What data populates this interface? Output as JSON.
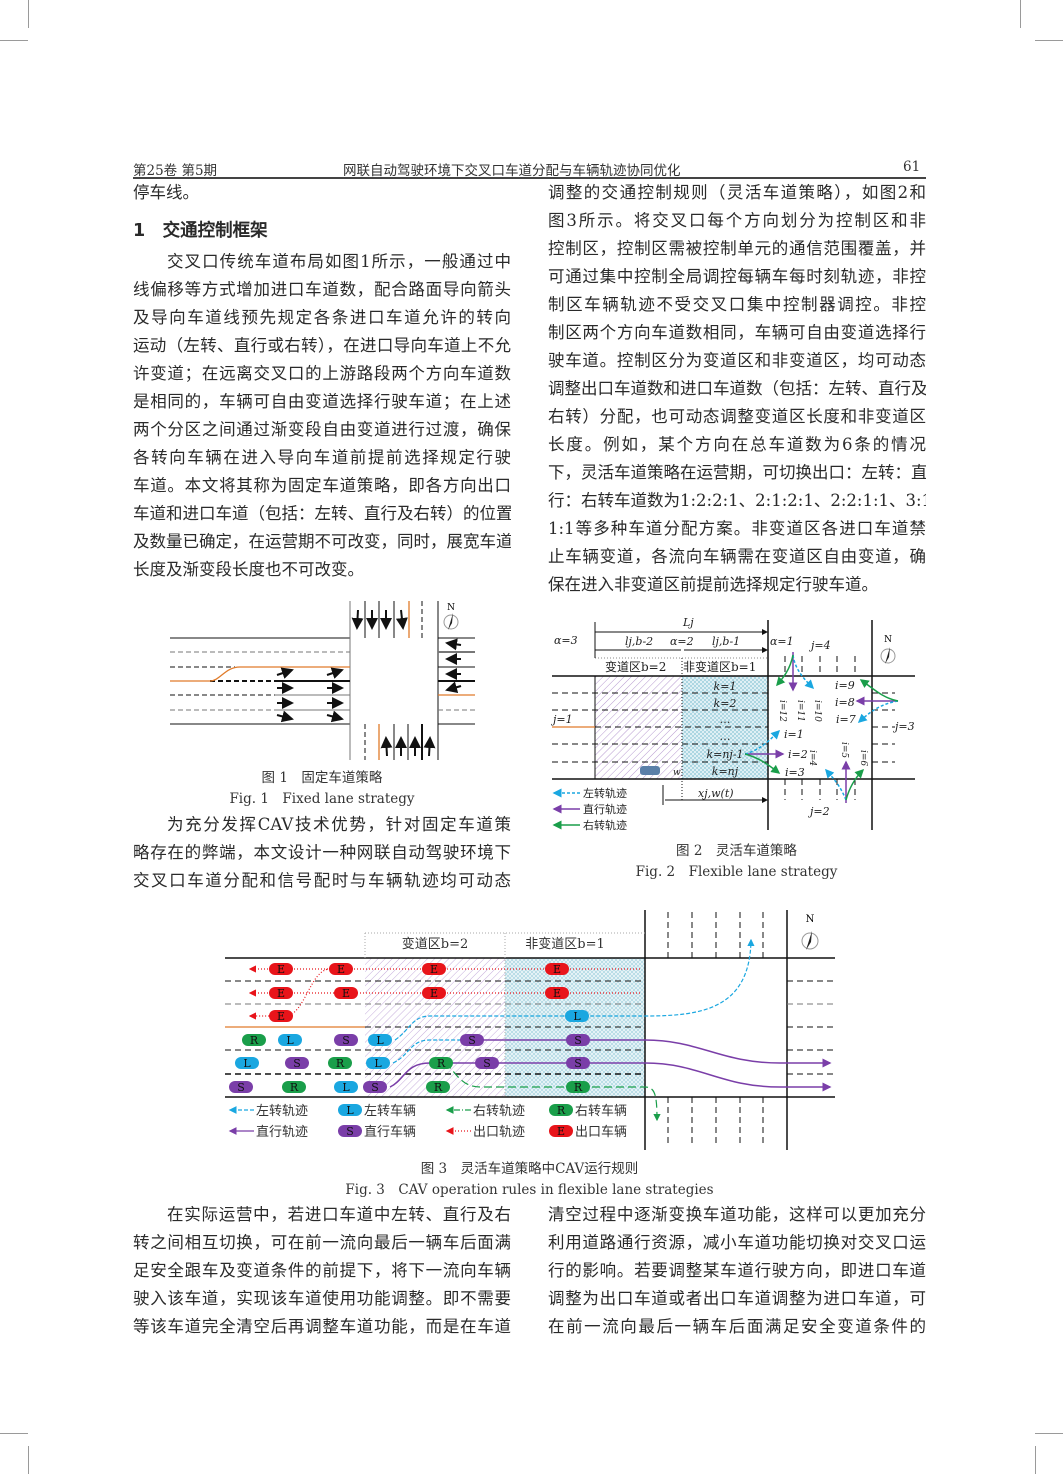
{
  "header": {
    "volume": "第25卷 第5期",
    "title": "网联自动驾驶环境下交叉口车道分配与车辆轨迹协同优化",
    "page": "61"
  },
  "left_column": {
    "first_line": "停车线。",
    "section_heading": "1　交通控制框架",
    "para1": [
      "交叉口传统车道布局如图1所示，一般通过中",
      "线偏移等方式增加进口车道数，配合路面导向箭头",
      "及导向车道线预先规定各条进口车道允许的转向",
      "运动（左转、直行或右转），在进口导向车道上不允",
      "许变道；在远离交叉口的上游路段两个方向车道数",
      "是相同的，车辆可自由变道选择行驶车道；在上述",
      "两个分区之间通过渐变段自由变道进行过渡，确保",
      "各转向车辆在进入导向车道前提前选择规定行驶",
      "车道。本文将其称为固定车道策略，即各方向出口",
      "车道和进口车道（包括：左转、直行及右转）的位置",
      "及数量已确定，在运营期不可改变，同时，展宽车道",
      "长度及渐变段长度也不可改变。"
    ],
    "para2": [
      "为充分发挥CAV技术优势，针对固定车道策",
      "略存在的弊端，本文设计一种网联自动驾驶环境下",
      "交叉口车道分配和信号配时与车辆轨迹均可动态"
    ]
  },
  "right_column": {
    "para1": [
      "调整的交通控制规则（灵活车道策略），如图2和",
      "图3所示。将交叉口每个方向划分为控制区和非",
      "控制区，控制区需被控制单元的通信范围覆盖，并",
      "可通过集中控制全局调控每辆车每时刻轨迹，非控",
      "制区车辆轨迹不受交叉口集中控制器调控。非控",
      "制区两个方向车道数相同，车辆可自由变道选择行",
      "驶车道。控制区分为变道区和非变道区，均可动态",
      "调整出口车道数和进口车道数（包括：左转、直行及",
      "右转）分配，也可动态调整变道区长度和非变道区",
      "长度。例如，某个方向在总车道数为6条的情况",
      "下，灵活车道策略在运营期，可切换出口：左转：直",
      "行：右转车道数为1:2:2:1、2:1:2:1、2:2:1:1、3:1:",
      "1:1等多种车道分配方案。非变道区各进口车道禁",
      "止车辆变道，各流向车辆需在变道区自由变道，确",
      "保在进入非变道区前提前选择规定行驶车道。"
    ]
  },
  "bottom": {
    "left": [
      "在实际运营中，若进口车道中左转、直行及右",
      "转之间相互切换，可在前一流向最后一辆车后面满",
      "足安全跟车及变道条件的前提下，将下一流向车辆",
      "驶入该车道，实现该车道使用功能调整。即不需要",
      "等该车道完全清空后再调整车道功能，而是在车道"
    ],
    "right": [
      "清空过程中逐渐变换车道功能，这样可以更加充分",
      "利用道路通行资源，减小车道功能切换对交叉口运",
      "行的影响。若要调整某车道行驶方向，即进口车道",
      "调整为出口车道或者出口车道调整为进口车道，可",
      "在前一流向最后一辆车后面满足安全变道条件的"
    ]
  },
  "fig1": {
    "caption_cn": "图 1　固定车道策略",
    "caption_en": "Fig. 1　Fixed lane strategy",
    "north": "N"
  },
  "fig2": {
    "caption_cn": "图 2　灵活车道策略",
    "caption_en": "Fig. 2　Flexible lane strategy",
    "north": "N",
    "Lj": "Lj",
    "alpha3": "α=3",
    "alpha2": "α=2",
    "alpha1": "α=1",
    "l_b2": "lj,b-2",
    "l_b1": "lj,b-1",
    "zone_b2": "变道区b=2",
    "zone_b1": "非变道区b=1",
    "k_labels": [
      "k=1",
      "k=2",
      "…",
      "…",
      "k=nj-1",
      "k=nj"
    ],
    "j1": "j=1",
    "j2": "j=2",
    "j3": "j=3",
    "j4": "j=4",
    "i_labels": [
      "i=1",
      "i=2",
      "i=3",
      "i=4",
      "i=5",
      "i=6",
      "i=7",
      "i=8",
      "i=9",
      "i=10",
      "i=11",
      "i=12"
    ],
    "vehicle": "w",
    "xjw": "xj,w(t)",
    "legend": [
      "左转轨迹",
      "直行轨迹",
      "右转轨迹"
    ],
    "colors": {
      "left": "#1aa7e0",
      "straight": "#7a3ea8",
      "right": "#1a9e4a",
      "entry": "#e07b2a"
    }
  },
  "fig3": {
    "caption_cn": "图 3　灵活车道策略中CAV运行规则",
    "caption_en": "Fig. 3　CAV operation rules in flexible lane strategies",
    "north": "N",
    "zone_b2": "变道区b=2",
    "zone_b1": "非变道区b=1",
    "rows": [
      [
        "E",
        "E",
        "E",
        "E"
      ],
      [
        "E",
        "E",
        "E",
        "E"
      ],
      [
        "E",
        "L"
      ],
      [
        "R",
        "L",
        "S",
        "L",
        "S",
        "S"
      ],
      [
        "L",
        "S",
        "R",
        "L",
        "R",
        "S",
        "S"
      ],
      [
        "S",
        "R",
        "L",
        "S",
        "R",
        "R"
      ]
    ],
    "legend": [
      {
        "line": "左转轨迹",
        "badge": "L",
        "badge_label": "左转车辆"
      },
      {
        "line": "右转轨迹",
        "badge": "R",
        "badge_label": "右转车辆"
      },
      {
        "line": "直行轨迹",
        "badge": "S",
        "badge_label": "直行车辆"
      },
      {
        "line": "出口轨迹",
        "badge": "E",
        "badge_label": "出口车辆"
      }
    ],
    "colors": {
      "L": "#1aa7e0",
      "S": "#7a3ea8",
      "R": "#1a9e4a",
      "E": "#e8141a"
    }
  }
}
